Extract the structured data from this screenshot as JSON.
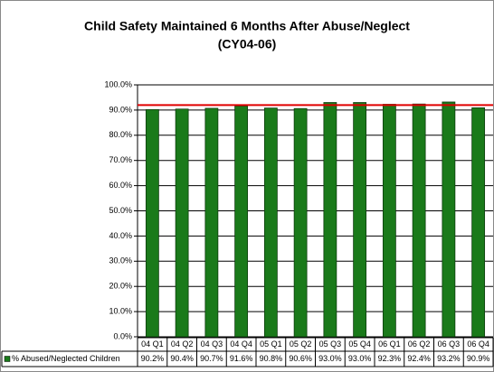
{
  "chart_data": {
    "type": "bar",
    "title": "Child Safety Maintained 6 Months After Abuse/Neglect",
    "subtitle": "(CY04-06)",
    "categories": [
      "04 Q1",
      "04 Q2",
      "04 Q3",
      "04 Q4",
      "05 Q1",
      "05 Q2",
      "05 Q3",
      "05 Q4",
      "06 Q1",
      "06 Q2",
      "06 Q3",
      "06 Q4"
    ],
    "series": [
      {
        "name": "% Abused/Neglected Children",
        "color": "#1a7a1a",
        "values": [
          90.2,
          90.4,
          90.7,
          91.6,
          90.8,
          90.6,
          93.0,
          93.0,
          92.3,
          92.4,
          93.2,
          90.9
        ],
        "value_labels": [
          "90.2%",
          "90.4%",
          "90.7%",
          "91.6%",
          "90.8%",
          "90.6%",
          "93.0%",
          "93.0%",
          "92.3%",
          "92.4%",
          "93.2%",
          "90.9%"
        ]
      }
    ],
    "reference_line": {
      "value": 92,
      "color": "#e00000"
    },
    "ylim": [
      0,
      100
    ],
    "yticks": [
      {
        "value": 0,
        "label": "0.0%"
      },
      {
        "value": 10,
        "label": "10.0%"
      },
      {
        "value": 20,
        "label": "20.0%"
      },
      {
        "value": 30,
        "label": "30.0%"
      },
      {
        "value": 40,
        "label": "40.0%"
      },
      {
        "value": 50,
        "label": "50.0%"
      },
      {
        "value": 60,
        "label": "60.0%"
      },
      {
        "value": 70,
        "label": "70.0%"
      },
      {
        "value": 80,
        "label": "80.0%"
      },
      {
        "value": 90,
        "label": "90.0%"
      },
      {
        "value": 100,
        "label": "100.0%"
      }
    ],
    "grid": true
  }
}
